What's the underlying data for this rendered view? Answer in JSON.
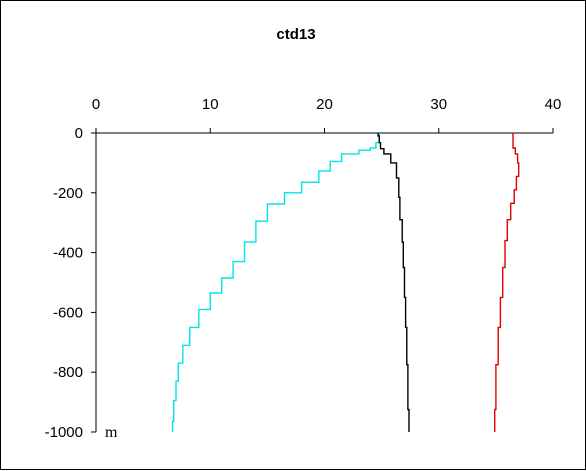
{
  "chart_data": {
    "type": "line",
    "title": "ctd13",
    "xlabel": "",
    "ylabel": "",
    "y_unit_label": "m",
    "xlim": [
      0,
      40
    ],
    "ylim": [
      -1000,
      0
    ],
    "x_ticks": [
      0,
      10,
      20,
      30,
      40
    ],
    "y_ticks": [
      0,
      -200,
      -400,
      -600,
      -800,
      -1000
    ],
    "x_axis_position": "top",
    "grid": false,
    "legend": "none",
    "series": [
      {
        "color": "#00e5e5",
        "x": [
          24.8,
          24.8,
          24.5,
          24.0,
          23.0,
          21.5,
          20.5,
          19.5,
          18.0,
          16.5,
          15.0,
          14.0,
          13.0,
          12.0,
          11.0,
          10.0,
          9.0,
          8.2,
          7.6,
          7.2,
          7.0,
          6.8,
          6.7
        ],
        "y": [
          0,
          -20,
          -45,
          -55,
          -60,
          -80,
          -110,
          -145,
          -185,
          -215,
          -260,
          -330,
          -400,
          -460,
          -510,
          -560,
          -620,
          -680,
          -740,
          -800,
          -860,
          -930,
          -1000
        ]
      },
      {
        "color": "#000000",
        "x": [
          24.7,
          24.8,
          24.9,
          25.2,
          25.8,
          26.3,
          26.5,
          26.6,
          26.8,
          26.9,
          27.0,
          27.1,
          27.2,
          27.3,
          27.4
        ],
        "y": [
          0,
          -20,
          -45,
          -60,
          -80,
          -120,
          -180,
          -250,
          -330,
          -400,
          -500,
          -600,
          -700,
          -850,
          -1000
        ]
      },
      {
        "color": "#e00000",
        "x": [
          36.5,
          36.5,
          36.7,
          36.9,
          37.0,
          36.8,
          36.6,
          36.3,
          36.0,
          35.8,
          35.6,
          35.4,
          35.2,
          35.0,
          34.9
        ],
        "y": [
          0,
          -40,
          -60,
          -80,
          -120,
          -170,
          -210,
          -260,
          -320,
          -400,
          -500,
          -600,
          -700,
          -850,
          -1000
        ]
      }
    ]
  }
}
